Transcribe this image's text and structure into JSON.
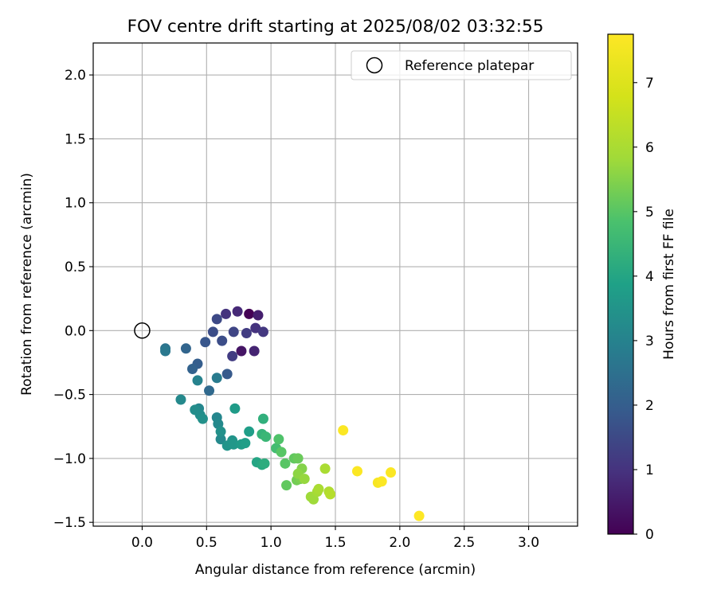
{
  "chart_data": {
    "type": "scatter",
    "title": "FOV centre drift starting at 2025/08/02 03:32:55",
    "xlabel": "Angular distance from reference (arcmin)",
    "ylabel": "Rotation from reference (arcmin)",
    "xlim": [
      -0.38,
      3.38
    ],
    "ylim": [
      -1.53,
      2.25
    ],
    "xticks": [
      "0.0",
      "0.5",
      "1.0",
      "1.5",
      "2.0",
      "2.5",
      "3.0"
    ],
    "yticks": [
      "−1.5",
      "−1.0",
      "−0.5",
      "0.0",
      "0.5",
      "1.0",
      "1.5",
      "2.0"
    ],
    "grid": true,
    "legend_position": "top-right",
    "reference": {
      "name": "Reference platepar",
      "x": 0.0,
      "y": 0.0
    },
    "colorbar": {
      "label": "Hours from first FF file",
      "colormap": "viridis",
      "range": [
        0,
        7.75
      ],
      "ticks": [
        "0",
        "1",
        "2",
        "3",
        "4",
        "5",
        "6",
        "7"
      ]
    },
    "series": [
      {
        "points": [
          [
            0.83,
            0.13,
            0.0
          ],
          [
            0.77,
            -0.16,
            0.4
          ],
          [
            0.9,
            0.12,
            0.6
          ],
          [
            0.87,
            -0.16,
            0.7
          ],
          [
            0.74,
            0.15,
            0.8
          ],
          [
            0.65,
            0.13,
            1.0
          ],
          [
            0.88,
            0.02,
            1.0
          ],
          [
            0.94,
            -0.01,
            1.1
          ],
          [
            0.81,
            -0.02,
            1.2
          ],
          [
            0.7,
            -0.2,
            1.2
          ],
          [
            0.71,
            -0.01,
            1.4
          ],
          [
            0.58,
            0.09,
            1.5
          ],
          [
            0.55,
            -0.01,
            1.6
          ],
          [
            0.62,
            -0.08,
            1.6
          ],
          [
            0.49,
            -0.09,
            1.8
          ],
          [
            0.66,
            -0.34,
            1.9
          ],
          [
            0.43,
            -0.26,
            2.0
          ],
          [
            0.39,
            -0.3,
            2.1
          ],
          [
            0.34,
            -0.14,
            2.2
          ],
          [
            0.52,
            -0.47,
            2.3
          ],
          [
            0.18,
            -0.14,
            2.6
          ],
          [
            0.18,
            -0.16,
            2.7
          ],
          [
            0.58,
            -0.37,
            2.8
          ],
          [
            0.43,
            -0.39,
            3.0
          ],
          [
            0.42,
            -0.62,
            3.0
          ],
          [
            0.44,
            -0.61,
            3.1
          ],
          [
            0.58,
            -0.68,
            3.1
          ],
          [
            0.59,
            -0.73,
            3.2
          ],
          [
            0.61,
            -0.85,
            3.2
          ],
          [
            0.3,
            -0.54,
            3.2
          ],
          [
            0.41,
            -0.62,
            3.3
          ],
          [
            0.45,
            -0.66,
            3.3
          ],
          [
            0.47,
            -0.69,
            3.4
          ],
          [
            0.61,
            -0.79,
            3.4
          ],
          [
            0.66,
            -0.9,
            3.5
          ],
          [
            0.7,
            -0.86,
            3.5
          ],
          [
            0.71,
            -0.89,
            3.6
          ],
          [
            0.72,
            -0.61,
            3.7
          ],
          [
            0.77,
            -0.89,
            3.7
          ],
          [
            0.83,
            -0.79,
            3.8
          ],
          [
            0.8,
            -0.88,
            3.8
          ],
          [
            0.89,
            -1.03,
            4.0
          ],
          [
            0.93,
            -1.05,
            4.1
          ],
          [
            0.95,
            -1.04,
            4.2
          ],
          [
            0.94,
            -0.69,
            4.3
          ],
          [
            0.93,
            -0.81,
            4.4
          ],
          [
            0.96,
            -0.83,
            4.5
          ],
          [
            1.04,
            -0.92,
            4.7
          ],
          [
            1.06,
            -0.85,
            4.9
          ],
          [
            1.08,
            -0.95,
            5.0
          ],
          [
            1.11,
            -1.04,
            5.0
          ],
          [
            1.12,
            -1.21,
            5.1
          ],
          [
            1.18,
            -1.0,
            5.1
          ],
          [
            1.21,
            -1.0,
            5.2
          ],
          [
            1.2,
            -1.17,
            5.3
          ],
          [
            1.23,
            -1.16,
            5.4
          ],
          [
            1.24,
            -1.08,
            5.5
          ],
          [
            1.21,
            -1.12,
            5.6
          ],
          [
            1.26,
            -1.16,
            5.7
          ],
          [
            1.31,
            -1.3,
            5.8
          ],
          [
            1.33,
            -1.32,
            5.8
          ],
          [
            1.36,
            -1.26,
            5.9
          ],
          [
            1.37,
            -1.24,
            6.0
          ],
          [
            1.42,
            -1.08,
            6.0
          ],
          [
            1.45,
            -1.26,
            6.1
          ],
          [
            1.46,
            -1.28,
            6.2
          ],
          [
            1.56,
            -0.78,
            7.7
          ],
          [
            1.67,
            -1.1,
            7.7
          ],
          [
            1.83,
            -1.19,
            7.6
          ],
          [
            1.86,
            -1.18,
            7.7
          ],
          [
            1.93,
            -1.11,
            7.7
          ],
          [
            2.15,
            -1.45,
            7.8
          ]
        ]
      }
    ]
  }
}
